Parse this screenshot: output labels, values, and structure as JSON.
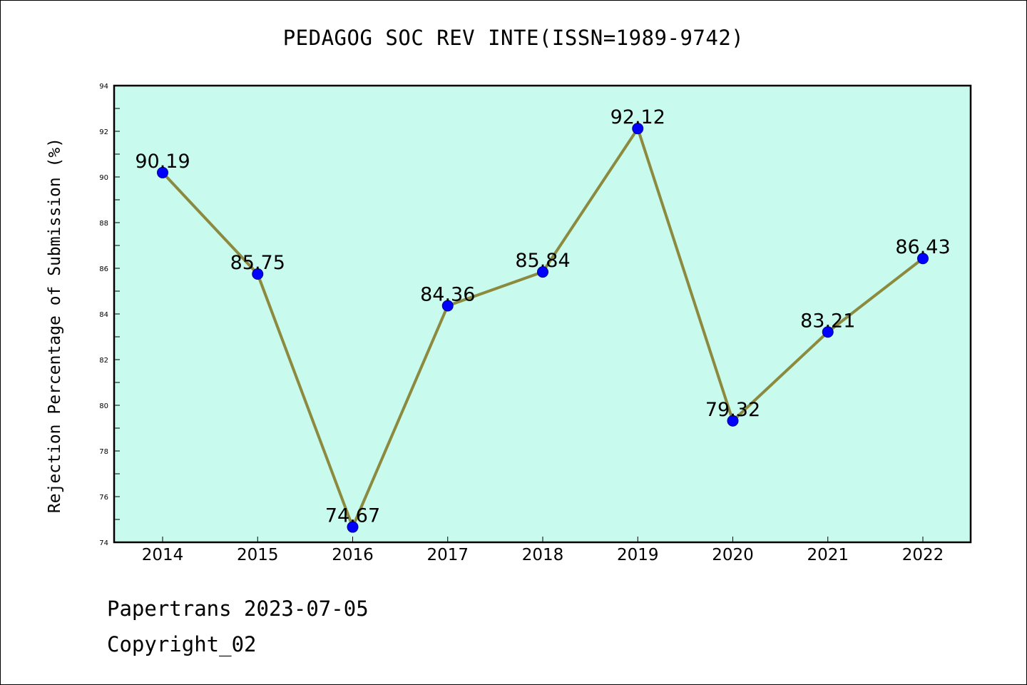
{
  "chart_data": {
    "type": "line",
    "title": "PEDAGOG SOC REV INTE(ISSN=1989-9742)",
    "xlabel": "",
    "ylabel": "Rejection Percentage of Submission (%)",
    "categories": [
      "2014",
      "2015",
      "2016",
      "2017",
      "2018",
      "2019",
      "2020",
      "2021",
      "2022"
    ],
    "series": [
      {
        "values": [
          90.19,
          85.75,
          74.67,
          84.36,
          85.84,
          92.12,
          79.32,
          83.21,
          86.43
        ],
        "data_labels": [
          "90.19",
          "85.75",
          "74.67",
          "84.36",
          "85.84",
          "92.12",
          "79.32",
          "83.21",
          "86.43"
        ]
      }
    ],
    "ylim": [
      74,
      94
    ],
    "yticks": [
      "74",
      "76",
      "78",
      "80",
      "82",
      "84",
      "86",
      "88",
      "90",
      "92",
      "94"
    ],
    "grid": false,
    "colors": {
      "plot_background": "#c8fbee",
      "line": "#8b8a3e",
      "marker": "#0000ff"
    }
  },
  "footer": {
    "date_text": "Papertrans 2023-07-05",
    "copyright_text": "Copyright_02"
  }
}
